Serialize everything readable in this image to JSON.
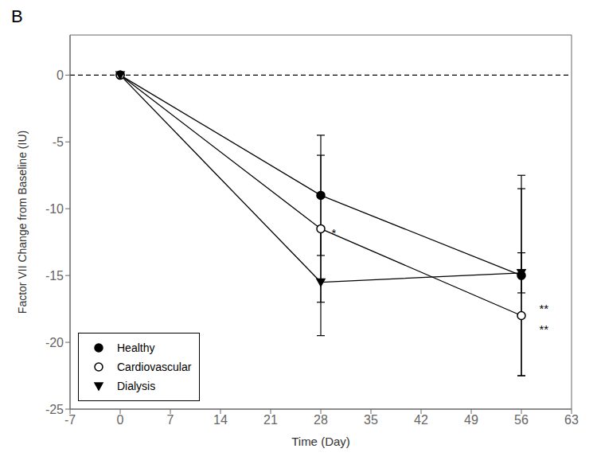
{
  "chart_data": {
    "type": "line",
    "title": "B",
    "x_label": "Time (Day)",
    "y_label": "Factor VII Change from Baseline (IU)",
    "xlim": [
      -7,
      63
    ],
    "ylim": [
      -25,
      3
    ],
    "xticks": [
      -7,
      0,
      7,
      14,
      21,
      28,
      35,
      42,
      49,
      56,
      63
    ],
    "yticks": [
      -25,
      -20,
      -15,
      -10,
      -5,
      0
    ],
    "grid": false,
    "legend": "lower left",
    "x": [
      0,
      28,
      56
    ],
    "series": [
      {
        "name": "Healthy",
        "color": "black",
        "marker": "circle",
        "line_style": "solid",
        "values": [
          0,
          -9.0,
          -15.0
        ],
        "error_low": [
          0,
          4.5,
          7.5
        ],
        "error_high": [
          0,
          4.5,
          7.5
        ]
      },
      {
        "name": "Cardiovascular",
        "color": "black",
        "marker": "open_circle",
        "line_style": "solid",
        "values": [
          0,
          -11.5,
          -18.0
        ],
        "error_low": [
          0,
          5.5,
          4.5
        ],
        "error_high": [
          0,
          5.5,
          9.5
        ]
      },
      {
        "name": "Dialysis",
        "color": "black",
        "marker": "triangle_down",
        "line_style": "solid",
        "values": [
          0,
          -15.5,
          -14.8
        ],
        "error_low": [
          0,
          4.0,
          1.5
        ],
        "error_high": [
          0,
          4.0,
          1.5
        ]
      }
    ],
    "hlines": [
      {
        "y": 0,
        "line_style": "dashed"
      }
    ],
    "annotations": [
      {
        "text": "*",
        "x": 29.5,
        "y": -11.8
      },
      {
        "text": "**",
        "x": 58.5,
        "y": -17.5
      },
      {
        "text": "**",
        "x": 58.5,
        "y": -19.0
      }
    ]
  }
}
